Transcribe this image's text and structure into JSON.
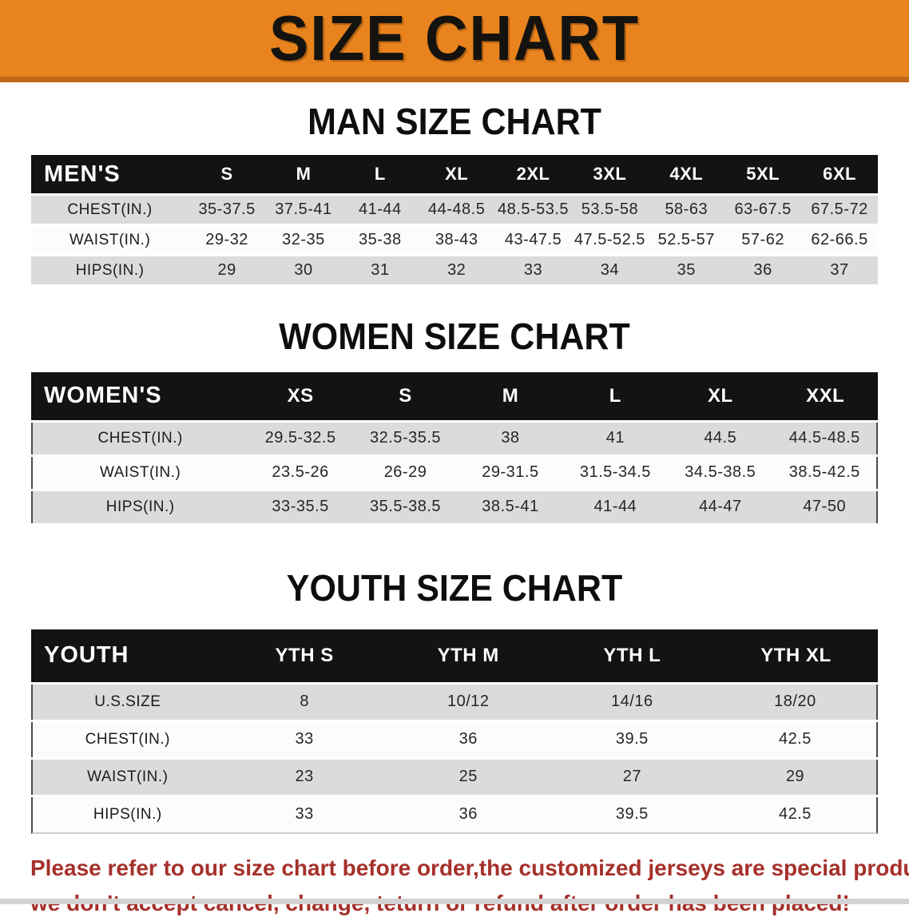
{
  "banner": {
    "title": "SIZE CHART",
    "bg_color": "#E8831D",
    "border_color": "#C2661A",
    "text_color": "#151310"
  },
  "sections": [
    {
      "id": "men",
      "title": "MAN SIZE CHART",
      "table": {
        "header_label": "MEN'S",
        "columns": [
          "S",
          "M",
          "L",
          "XL",
          "2XL",
          "3XL",
          "4XL",
          "5XL",
          "6XL"
        ],
        "rows": [
          {
            "label": "CHEST(IN.)",
            "values": [
              "35-37.5",
              "37.5-41",
              "41-44",
              "44-48.5",
              "48.5-53.5",
              "53.5-58",
              "58-63",
              "63-67.5",
              "67.5-72"
            ]
          },
          {
            "label": "WAIST(IN.)",
            "values": [
              "29-32",
              "32-35",
              "35-38",
              "38-43",
              "43-47.5",
              "47.5-52.5",
              "52.5-57",
              "57-62",
              "62-66.5"
            ]
          },
          {
            "label": "HIPS(IN.)",
            "values": [
              "29",
              "30",
              "31",
              "32",
              "33",
              "34",
              "35",
              "36",
              "37"
            ]
          }
        ]
      }
    },
    {
      "id": "women",
      "title": "WOMEN SIZE CHART",
      "table": {
        "header_label": "WOMEN'S",
        "columns": [
          "XS",
          "S",
          "M",
          "L",
          "XL",
          "XXL"
        ],
        "rows": [
          {
            "label": "CHEST(IN.)",
            "values": [
              "29.5-32.5",
              "32.5-35.5",
              "38",
              "41",
              "44.5",
              "44.5-48.5"
            ]
          },
          {
            "label": "WAIST(IN.)",
            "values": [
              "23.5-26",
              "26-29",
              "29-31.5",
              "31.5-34.5",
              "34.5-38.5",
              "38.5-42.5"
            ]
          },
          {
            "label": "HIPS(IN.)",
            "values": [
              "33-35.5",
              "35.5-38.5",
              "38.5-41",
              "41-44",
              "44-47",
              "47-50"
            ]
          }
        ]
      }
    },
    {
      "id": "youth",
      "title": "YOUTH SIZE CHART",
      "table": {
        "header_label": "YOUTH",
        "columns": [
          "YTH S",
          "YTH M",
          "YTH L",
          "YTH XL"
        ],
        "rows": [
          {
            "label": "U.S.SIZE",
            "values": [
              "8",
              "10/12",
              "14/16",
              "18/20"
            ]
          },
          {
            "label": "CHEST(IN.)",
            "values": [
              "33",
              "36",
              "39.5",
              "42.5"
            ]
          },
          {
            "label": "WAIST(IN.)",
            "values": [
              "23",
              "25",
              "27",
              "29"
            ]
          },
          {
            "label": "HIPS(IN.)",
            "values": [
              "33",
              "36",
              "39.5",
              "42.5"
            ]
          }
        ]
      }
    }
  ],
  "disclaimer": {
    "lines": [
      "Please refer to our size chart before order,the customized jerseys are special products,",
      "we don't accept cancel, change, teturn or refund after order has been placed!"
    ],
    "color": "#A6302A"
  },
  "colors": {
    "stripe_row": "#DBDBDB",
    "table_header_bg": "#131313",
    "bottom_strip": "#D2D2D2"
  }
}
